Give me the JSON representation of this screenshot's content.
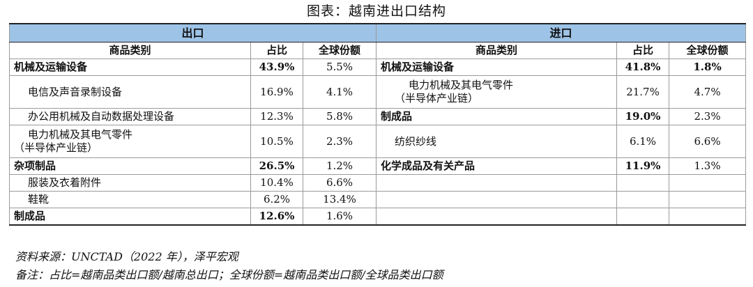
{
  "title": "图表：越南进出口结构",
  "sections": {
    "export": "出口",
    "import": "进口"
  },
  "headers": {
    "category": "商品类别",
    "share": "占比",
    "global": "全球份额"
  },
  "rows": [
    {
      "e": {
        "name": "机械及运输设备",
        "share": "43.9%",
        "global": "5.5%"
      },
      "i": {
        "name": "机械及运输设备",
        "share": "41.8%",
        "global": "1.8%"
      }
    },
    {
      "e": {
        "name": "电信及声音录制设备",
        "share": "16.9%",
        "global": "4.1%"
      },
      "i": {
        "name1": "电力机械及其电气零件",
        "name2": "（半导体产业链）",
        "share": "21.7%",
        "global": "4.7%"
      }
    },
    {
      "e": {
        "name": "办公用机械及自动数据处理设备",
        "share": "12.3%",
        "global": "5.8%"
      },
      "i": {
        "name": "制成品",
        "share": "19.0%",
        "global": "2.3%"
      }
    },
    {
      "e": {
        "name1": "电力机械及其电气零件",
        "name2": "（半导体产业链）",
        "share": "10.5%",
        "global": "2.3%"
      },
      "i": {
        "name": "纺织纱线",
        "share": "6.1%",
        "global": "6.6%"
      }
    },
    {
      "e": {
        "name": "杂项制品",
        "share": "26.5%",
        "global": "1.2%"
      },
      "i": {
        "name": "化学成品及有关产品",
        "share": "11.9%",
        "global": "1.3%"
      }
    },
    {
      "e": {
        "name": "服装及衣着附件",
        "share": "10.4%",
        "global": "6.6%"
      }
    },
    {
      "e": {
        "name": "鞋靴",
        "share": "6.2%",
        "global": "13.4%"
      }
    },
    {
      "e": {
        "name": "制成品",
        "share": "12.6%",
        "global": "1.6%"
      }
    }
  ],
  "source": "资料来源：UNCTAD（2022 年），泽平宏观",
  "note": "备注：占比=越南品类出口额/越南总出口；全球份额=越南品类出口额/全球品类出口额"
}
